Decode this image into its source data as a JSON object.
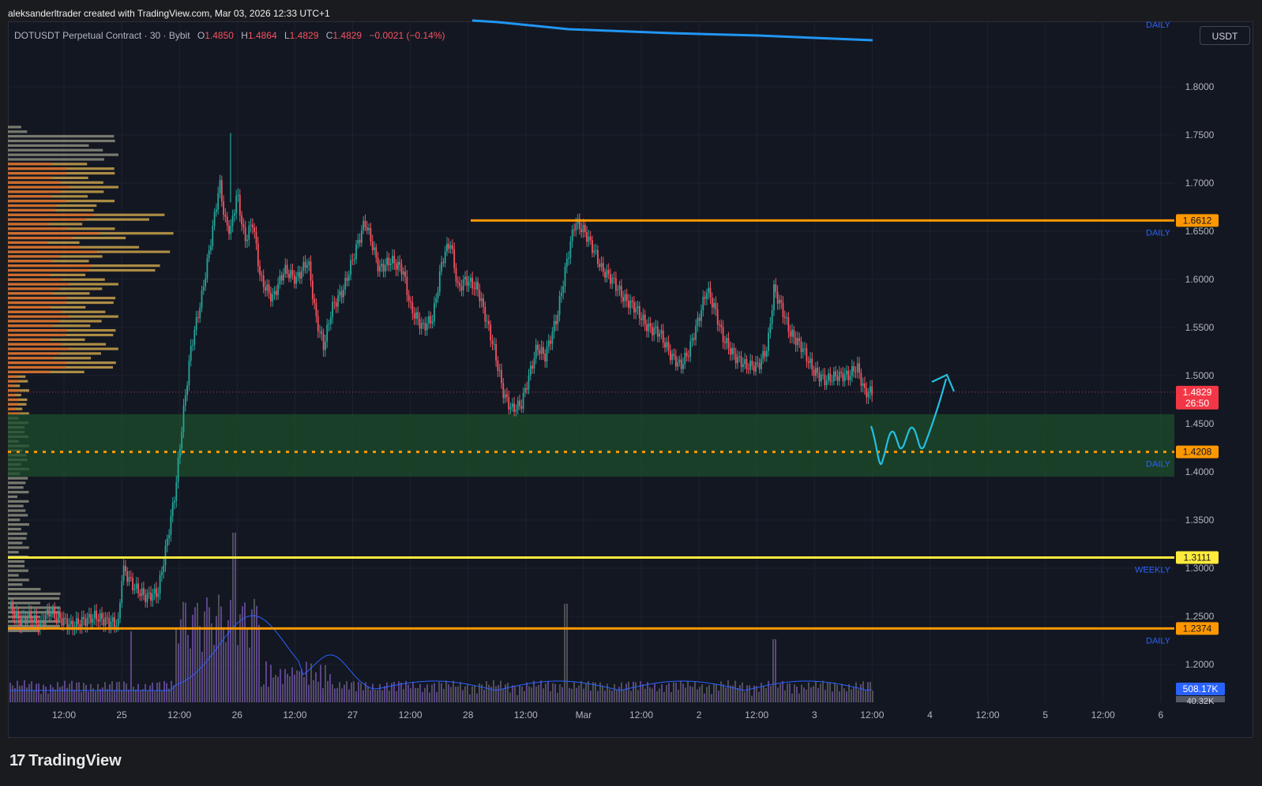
{
  "header": {
    "credit": "aleksanderltrader created with TradingView.com, Mar 03, 2026 12:33 UTC+1",
    "symbol": "DOTUSDT Perpetual Contract · 30 · Bybit",
    "ohlc": {
      "o_label": "O",
      "o": "1.4850",
      "h_label": "H",
      "h": "1.4864",
      "l_label": "L",
      "l": "1.4829",
      "c_label": "C",
      "c": "1.4829",
      "change": "−0.0021 (−0.14%)"
    },
    "currency": "USDT"
  },
  "footer": {
    "brand": "TradingView"
  },
  "colors": {
    "bg": "#131722",
    "up": "#26a69a",
    "down": "#f7525f",
    "orange": "#ff9800",
    "yellow": "#ffeb3b",
    "zone": "#1e4d2b",
    "cyan": "#22c0e0",
    "ma": "#2962ff",
    "volume_ma": "#2962ff"
  },
  "chart_data": {
    "type": "candlestick",
    "y_ticks": [
      "1.8000",
      "1.7500",
      "1.7000",
      "1.6500",
      "1.6000",
      "1.5500",
      "1.5000",
      "1.4500",
      "1.4000",
      "1.3500",
      "1.3000",
      "1.2500",
      "1.2000"
    ],
    "ylim": [
      1.165,
      1.865
    ],
    "x_ticks": [
      "12:00",
      "25",
      "12:00",
      "26",
      "12:00",
      "27",
      "12:00",
      "28",
      "12:00",
      "Mar",
      "12:00",
      "2",
      "12:00",
      "3",
      "12:00",
      "4",
      "12:00",
      "5",
      "12:00",
      "6"
    ],
    "levels": [
      {
        "price": 1.6612,
        "label": "1.6612",
        "tag": "DAILY",
        "color": "#ff9800",
        "style": "solid"
      },
      {
        "price": 1.4208,
        "label": "1.4208",
        "tag": "DAILY",
        "color": "#ff9800",
        "style": "dotted"
      },
      {
        "price": 1.3111,
        "label": "1.3111",
        "tag": "WEEKLY",
        "color": "#ffeb3b",
        "style": "solid"
      },
      {
        "price": 1.2374,
        "label": "1.2374",
        "tag": "DAILY",
        "color": "#ff9800",
        "style": "solid"
      }
    ],
    "ma_tag": "DAILY",
    "zone": {
      "low": 1.395,
      "high": 1.46
    },
    "last_price": {
      "price": "1.4829",
      "countdown": "26:50"
    },
    "volume_label": "508.17K",
    "volume_label2": "40.32K",
    "price_path": [
      [
        0,
        1.27
      ],
      [
        12,
        1.26
      ],
      [
        25,
        1.245
      ],
      [
        38,
        1.25
      ],
      [
        50,
        1.24
      ],
      [
        62,
        1.255
      ],
      [
        75,
        1.248
      ],
      [
        90,
        1.24
      ],
      [
        105,
        1.245
      ],
      [
        120,
        1.25
      ],
      [
        135,
        1.245
      ],
      [
        150,
        1.242
      ],
      [
        155,
        1.3
      ],
      [
        170,
        1.28
      ],
      [
        185,
        1.27
      ],
      [
        200,
        1.275
      ],
      [
        212,
        1.33
      ],
      [
        222,
        1.38
      ],
      [
        232,
        1.46
      ],
      [
        242,
        1.53
      ],
      [
        255,
        1.58
      ],
      [
        265,
        1.63
      ],
      [
        278,
        1.7
      ],
      [
        285,
        1.66
      ],
      [
        292,
        1.65
      ],
      [
        300,
        1.69
      ],
      [
        310,
        1.64
      ],
      [
        320,
        1.66
      ],
      [
        330,
        1.6
      ],
      [
        345,
        1.58
      ],
      [
        360,
        1.61
      ],
      [
        375,
        1.6
      ],
      [
        390,
        1.62
      ],
      [
        400,
        1.56
      ],
      [
        410,
        1.53
      ],
      [
        420,
        1.57
      ],
      [
        435,
        1.59
      ],
      [
        450,
        1.63
      ],
      [
        462,
        1.66
      ],
      [
        470,
        1.64
      ],
      [
        480,
        1.61
      ],
      [
        495,
        1.62
      ],
      [
        510,
        1.61
      ],
      [
        520,
        1.57
      ],
      [
        535,
        1.55
      ],
      [
        548,
        1.56
      ],
      [
        560,
        1.62
      ],
      [
        570,
        1.64
      ],
      [
        580,
        1.59
      ],
      [
        590,
        1.6
      ],
      [
        605,
        1.59
      ],
      [
        615,
        1.56
      ],
      [
        625,
        1.53
      ],
      [
        638,
        1.48
      ],
      [
        648,
        1.465
      ],
      [
        660,
        1.47
      ],
      [
        670,
        1.5
      ],
      [
        680,
        1.53
      ],
      [
        690,
        1.52
      ],
      [
        705,
        1.56
      ],
      [
        718,
        1.62
      ],
      [
        728,
        1.66
      ],
      [
        740,
        1.65
      ],
      [
        752,
        1.63
      ],
      [
        762,
        1.61
      ],
      [
        775,
        1.6
      ],
      [
        790,
        1.58
      ],
      [
        805,
        1.57
      ],
      [
        820,
        1.55
      ],
      [
        835,
        1.545
      ],
      [
        850,
        1.52
      ],
      [
        862,
        1.51
      ],
      [
        872,
        1.525
      ],
      [
        885,
        1.56
      ],
      [
        895,
        1.59
      ],
      [
        905,
        1.57
      ],
      [
        915,
        1.54
      ],
      [
        930,
        1.52
      ],
      [
        945,
        1.51
      ],
      [
        960,
        1.51
      ],
      [
        972,
        1.53
      ],
      [
        980,
        1.59
      ],
      [
        990,
        1.57
      ],
      [
        1000,
        1.545
      ],
      [
        1015,
        1.53
      ],
      [
        1030,
        1.505
      ],
      [
        1045,
        1.495
      ],
      [
        1060,
        1.5
      ],
      [
        1075,
        1.5
      ],
      [
        1085,
        1.51
      ],
      [
        1095,
        1.483
      ]
    ],
    "projection": [
      [
        1092,
        1.44
      ],
      [
        1105,
        1.405
      ],
      [
        1118,
        1.44
      ],
      [
        1130,
        1.425
      ],
      [
        1142,
        1.44
      ],
      [
        1155,
        1.425
      ],
      [
        1168,
        1.47
      ],
      [
        1180,
        1.5
      ]
    ]
  }
}
